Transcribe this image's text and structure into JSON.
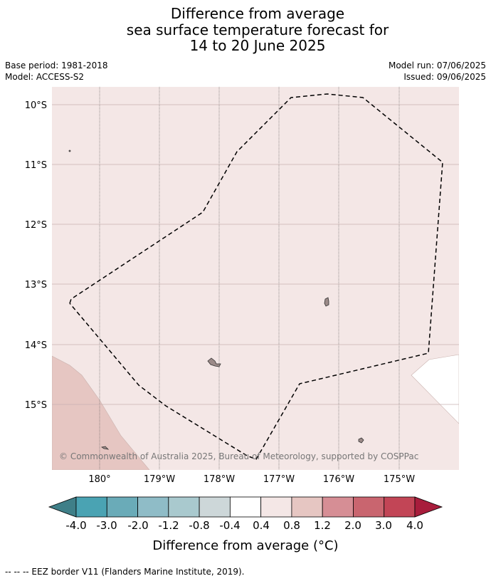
{
  "title": {
    "line1": "Difference from average",
    "line2": "sea surface temperature forecast for",
    "line3": "14 to 20 June 2025"
  },
  "meta": {
    "base_period": "Base period: 1981-2018",
    "model": "Model: ACCESS-S2",
    "model_run": "Model run: 07/06/2025",
    "issued": "Issued: 09/06/2025"
  },
  "map": {
    "lon_ticks": [
      "180°",
      "179°W",
      "178°W",
      "177°W",
      "176°W",
      "175°W"
    ],
    "lat_ticks": [
      "10°S",
      "11°S",
      "12°S",
      "13°S",
      "14°S",
      "15°S"
    ],
    "copyright": "© Commonwealth of Australia 2025, Bureau of Meteorology, supported by COSPPac",
    "colors": {
      "ocean_anomaly": "#f4e7e6",
      "warm_anomaly": "#e6c6c2",
      "land": "#9b8a88",
      "eez_line": "#000000"
    }
  },
  "colorbar": {
    "label": "Difference from average (°C)",
    "tick_labels": [
      "-4.0",
      "-3.0",
      "-2.0",
      "-1.2",
      "-0.8",
      "-0.4",
      "0.4",
      "0.8",
      "1.2",
      "2.0",
      "3.0",
      "4.0"
    ],
    "colors": [
      "#3f7f88",
      "#4aa3b3",
      "#6aabb8",
      "#8fbcc7",
      "#a9c9ce",
      "#cdd7d9",
      "#ffffff",
      "#f4e7e6",
      "#e6c6c2",
      "#d68e95",
      "#c9656f",
      "#c24556",
      "#a81d3c"
    ]
  },
  "footer": {
    "legend_text": "--  --  -- EEZ border V11 (Flanders Marine Institute, 2019)."
  }
}
